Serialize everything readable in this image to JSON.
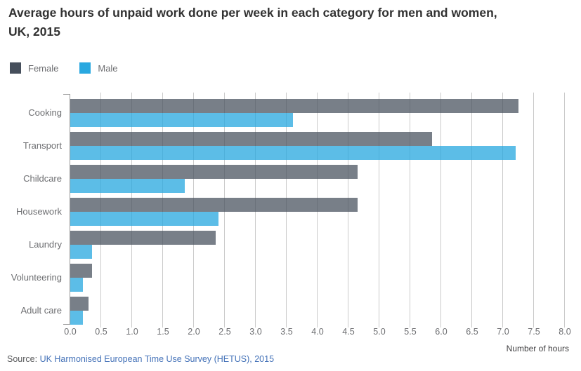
{
  "title": {
    "line1": "Average hours of unpaid work done per week in each category for men and women,",
    "line2": "UK, 2015"
  },
  "source": {
    "prefix": "Source: ",
    "link_text": "UK Harmonised European Time Use Survey (HETUS), 2015",
    "link_color": "#4472b8"
  },
  "chart_data": {
    "type": "bar",
    "orientation": "horizontal",
    "title": "Average hours of unpaid work done per week in each category for men and women, UK, 2015",
    "xlabel": "Number of hours",
    "ylabel": "",
    "xlim": [
      0,
      8
    ],
    "xtick_step": 0.5,
    "xticks": [
      "0.0",
      "0.5",
      "1.0",
      "1.5",
      "2.0",
      "2.5",
      "3.0",
      "3.5",
      "4.0",
      "4.5",
      "5.0",
      "5.5",
      "6.0",
      "6.5",
      "7.0",
      "7.5",
      "8.0"
    ],
    "grid": "vertical",
    "legend_position": "top-left",
    "categories": [
      "Cooking",
      "Transport",
      "Childcare",
      "Housework",
      "Laundry",
      "Volunteering",
      "Adult care"
    ],
    "series": [
      {
        "name": "Female",
        "color": "#464f5c",
        "values": [
          7.25,
          5.85,
          4.65,
          4.65,
          2.35,
          0.35,
          0.3
        ]
      },
      {
        "name": "Male",
        "color": "#29a8e0",
        "values": [
          3.6,
          7.2,
          1.85,
          2.4,
          0.35,
          0.2,
          0.2
        ]
      }
    ]
  },
  "colors": {
    "gridline": "#cacaca",
    "axis": "#9a9a9a",
    "title_text": "#323232",
    "axis_text": "#6d6e71"
  }
}
